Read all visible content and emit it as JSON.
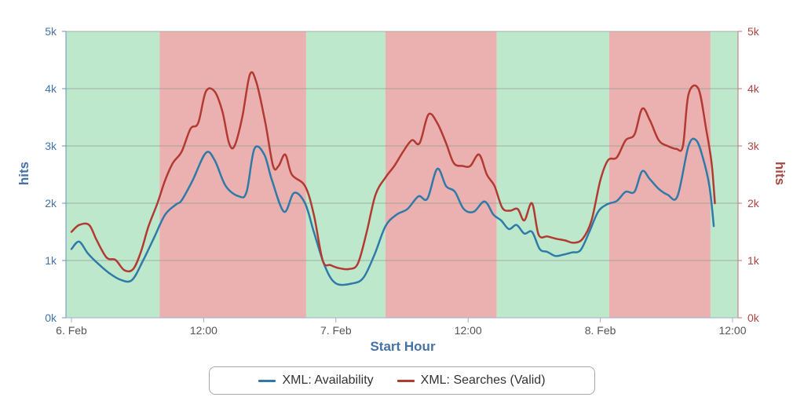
{
  "chart_data": {
    "type": "line",
    "xlabel": "Start Hour",
    "ylabel_left": "hits",
    "ylabel_right": "hits",
    "ylim": [
      0,
      5000
    ],
    "x_range_hours": [
      0,
      60.5
    ],
    "x_ticks": [
      {
        "hour": 0,
        "label": "6. Feb"
      },
      {
        "hour": 12,
        "label": "12:00"
      },
      {
        "hour": 24,
        "label": "7. Feb"
      },
      {
        "hour": 36,
        "label": "12:00"
      },
      {
        "hour": 48,
        "label": "8. Feb"
      },
      {
        "hour": 60,
        "label": "12:00"
      }
    ],
    "y_ticks": [
      {
        "value": 0,
        "label": "0k"
      },
      {
        "value": 1000,
        "label": "1k"
      },
      {
        "value": 2000,
        "label": "2k"
      },
      {
        "value": 3000,
        "label": "3k"
      },
      {
        "value": 4000,
        "label": "4k"
      },
      {
        "value": 5000,
        "label": "5k"
      }
    ],
    "bands": [
      {
        "from": -0.5,
        "to": 8,
        "color": "#bde8cc"
      },
      {
        "from": 8,
        "to": 21.3,
        "color": "#ebb0b0"
      },
      {
        "from": 21.3,
        "to": 28.5,
        "color": "#bde8cc"
      },
      {
        "from": 28.5,
        "to": 38.6,
        "color": "#ebb0b0"
      },
      {
        "from": 38.6,
        "to": 48.8,
        "color": "#bde8cc"
      },
      {
        "from": 48.8,
        "to": 58,
        "color": "#ebb0b0"
      },
      {
        "from": 58,
        "to": 60.5,
        "color": "#bde8cc"
      }
    ],
    "series": [
      {
        "name": "XML: Availability",
        "color": "#2f7aa8",
        "points": [
          [
            0,
            1200
          ],
          [
            0.7,
            1330
          ],
          [
            1.5,
            1120
          ],
          [
            2.5,
            930
          ],
          [
            3.5,
            770
          ],
          [
            4.5,
            660
          ],
          [
            5.5,
            660
          ],
          [
            6.5,
            1000
          ],
          [
            7.5,
            1400
          ],
          [
            8.5,
            1800
          ],
          [
            9.5,
            1980
          ],
          [
            10,
            2050
          ],
          [
            11,
            2400
          ],
          [
            12.2,
            2880
          ],
          [
            13,
            2750
          ],
          [
            14,
            2300
          ],
          [
            15.2,
            2120
          ],
          [
            15.9,
            2200
          ],
          [
            16.6,
            2950
          ],
          [
            17.5,
            2850
          ],
          [
            18.2,
            2400
          ],
          [
            19.3,
            1850
          ],
          [
            20.2,
            2180
          ],
          [
            21.2,
            2000
          ],
          [
            22,
            1500
          ],
          [
            23,
            900
          ],
          [
            24,
            600
          ],
          [
            25.5,
            600
          ],
          [
            26.5,
            700
          ],
          [
            27.5,
            1100
          ],
          [
            28.5,
            1600
          ],
          [
            29.5,
            1800
          ],
          [
            30.5,
            1900
          ],
          [
            31.5,
            2120
          ],
          [
            32.3,
            2080
          ],
          [
            33.2,
            2600
          ],
          [
            34,
            2300
          ],
          [
            34.8,
            2200
          ],
          [
            35.6,
            1900
          ],
          [
            36.5,
            1850
          ],
          [
            37.5,
            2030
          ],
          [
            38.3,
            1800
          ],
          [
            39,
            1700
          ],
          [
            39.7,
            1550
          ],
          [
            40.4,
            1620
          ],
          [
            41.1,
            1470
          ],
          [
            41.8,
            1500
          ],
          [
            42.5,
            1200
          ],
          [
            43.2,
            1150
          ],
          [
            43.9,
            1080
          ],
          [
            44.6,
            1100
          ],
          [
            45.4,
            1140
          ],
          [
            46.2,
            1180
          ],
          [
            47,
            1500
          ],
          [
            47.8,
            1850
          ],
          [
            48.6,
            1980
          ],
          [
            49.5,
            2040
          ],
          [
            50.3,
            2200
          ],
          [
            51.1,
            2200
          ],
          [
            51.8,
            2560
          ],
          [
            52.5,
            2420
          ],
          [
            53.3,
            2250
          ],
          [
            54.1,
            2150
          ],
          [
            55,
            2120
          ],
          [
            56,
            3000
          ],
          [
            56.7,
            3100
          ],
          [
            57.3,
            2800
          ],
          [
            57.9,
            2300
          ],
          [
            58.3,
            1600
          ]
        ]
      },
      {
        "name": "XML: Searches (Valid)",
        "color": "#b23a32",
        "points": [
          [
            0,
            1500
          ],
          [
            0.7,
            1620
          ],
          [
            1.6,
            1620
          ],
          [
            2.3,
            1350
          ],
          [
            3.2,
            1050
          ],
          [
            4,
            1010
          ],
          [
            4.8,
            830
          ],
          [
            5.6,
            850
          ],
          [
            6.3,
            1150
          ],
          [
            7,
            1600
          ],
          [
            7.8,
            2000
          ],
          [
            8.5,
            2400
          ],
          [
            9.2,
            2700
          ],
          [
            10,
            2900
          ],
          [
            10.8,
            3300
          ],
          [
            11.5,
            3400
          ],
          [
            12.2,
            3950
          ],
          [
            13,
            3950
          ],
          [
            13.7,
            3600
          ],
          [
            14.3,
            3050
          ],
          [
            14.8,
            3000
          ],
          [
            15.5,
            3500
          ],
          [
            16.2,
            4250
          ],
          [
            16.8,
            4100
          ],
          [
            17.6,
            3400
          ],
          [
            18.3,
            2650
          ],
          [
            18.8,
            2650
          ],
          [
            19.4,
            2850
          ],
          [
            20,
            2500
          ],
          [
            21.2,
            2300
          ],
          [
            22,
            1800
          ],
          [
            22.8,
            1000
          ],
          [
            23.5,
            920
          ],
          [
            24.2,
            870
          ],
          [
            25.2,
            850
          ],
          [
            26,
            950
          ],
          [
            26.8,
            1500
          ],
          [
            27.6,
            2150
          ],
          [
            28.5,
            2450
          ],
          [
            29.3,
            2650
          ],
          [
            30.1,
            2900
          ],
          [
            30.9,
            3100
          ],
          [
            31.6,
            3050
          ],
          [
            32.4,
            3550
          ],
          [
            33.2,
            3400
          ],
          [
            34,
            3050
          ],
          [
            34.7,
            2700
          ],
          [
            35.5,
            2650
          ],
          [
            36.2,
            2650
          ],
          [
            37,
            2850
          ],
          [
            37.7,
            2500
          ],
          [
            38.4,
            2300
          ],
          [
            39.1,
            1920
          ],
          [
            39.8,
            1870
          ],
          [
            40.5,
            1900
          ],
          [
            41.1,
            1700
          ],
          [
            41.8,
            2000
          ],
          [
            42.4,
            1450
          ],
          [
            43.2,
            1420
          ],
          [
            44,
            1380
          ],
          [
            44.8,
            1350
          ],
          [
            45.6,
            1310
          ],
          [
            46.4,
            1380
          ],
          [
            47.2,
            1700
          ],
          [
            48,
            2400
          ],
          [
            48.7,
            2750
          ],
          [
            49.5,
            2800
          ],
          [
            50.3,
            3100
          ],
          [
            51.1,
            3200
          ],
          [
            51.8,
            3650
          ],
          [
            52.5,
            3450
          ],
          [
            53.3,
            3100
          ],
          [
            54.1,
            3000
          ],
          [
            54.9,
            2950
          ],
          [
            55.5,
            3000
          ],
          [
            56,
            3900
          ],
          [
            56.9,
            4000
          ],
          [
            57.6,
            3300
          ],
          [
            58.1,
            2700
          ],
          [
            58.4,
            2000
          ]
        ]
      }
    ]
  },
  "legend": [
    {
      "label": "XML: Availability",
      "color": "#2f7aa8"
    },
    {
      "label": "XML: Searches (Valid)",
      "color": "#b23a32"
    }
  ],
  "colors": {
    "left_axis": "#4572a7",
    "right_axis": "#aa4643",
    "xlabel": "#4572a7"
  }
}
